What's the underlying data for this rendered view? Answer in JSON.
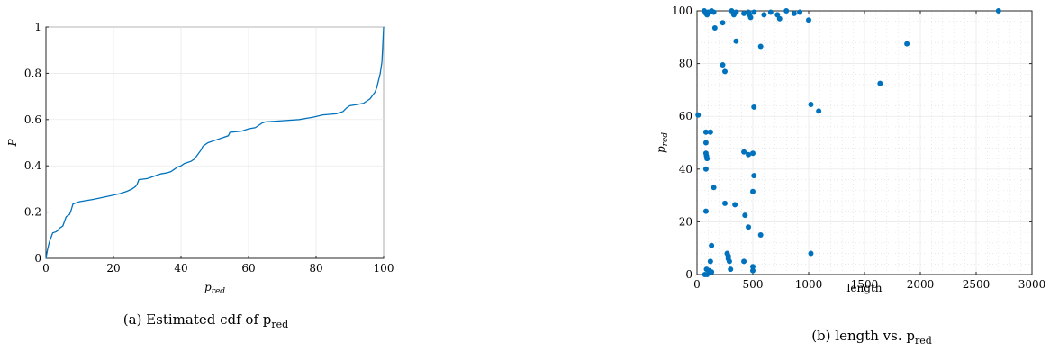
{
  "chart_data": [
    {
      "type": "line",
      "caption": "(a) Estimated cdf of p",
      "caption_sub": "red",
      "xlabel": "p",
      "xlabel_sub": "red",
      "ylabel": "P",
      "xlim": [
        0,
        100
      ],
      "ylim": [
        0,
        1
      ],
      "xticks": [
        "0",
        "20",
        "40",
        "60",
        "80",
        "100"
      ],
      "yticks": [
        "0",
        "0.2",
        "0.4",
        "0.6",
        "0.8",
        "1"
      ],
      "grid": true,
      "color": "#0072BD",
      "series": [
        {
          "x": [
            0,
            0.5,
            1,
            2,
            3,
            3.5,
            4,
            5,
            5.5,
            6,
            7,
            7.5,
            8,
            10,
            14,
            18,
            22,
            24,
            25.5,
            26.5,
            27,
            27.5,
            30,
            32,
            34,
            36,
            37,
            38,
            39,
            40,
            41,
            42,
            43,
            44,
            45,
            46,
            46.5,
            48,
            50,
            52,
            54,
            54.5,
            58,
            60,
            62,
            63,
            64,
            65,
            70,
            75,
            77,
            79,
            82,
            86,
            88,
            89,
            90,
            92,
            94,
            95,
            96,
            97,
            97.5,
            98,
            99,
            99.5,
            100
          ],
          "y": [
            0,
            0.04,
            0.07,
            0.11,
            0.115,
            0.12,
            0.13,
            0.14,
            0.16,
            0.18,
            0.19,
            0.21,
            0.235,
            0.245,
            0.255,
            0.267,
            0.28,
            0.29,
            0.3,
            0.31,
            0.32,
            0.34,
            0.345,
            0.355,
            0.365,
            0.37,
            0.375,
            0.385,
            0.395,
            0.4,
            0.41,
            0.415,
            0.42,
            0.43,
            0.45,
            0.47,
            0.485,
            0.5,
            0.51,
            0.52,
            0.53,
            0.545,
            0.55,
            0.56,
            0.565,
            0.575,
            0.585,
            0.59,
            0.595,
            0.6,
            0.605,
            0.61,
            0.62,
            0.625,
            0.635,
            0.65,
            0.66,
            0.665,
            0.67,
            0.68,
            0.69,
            0.71,
            0.72,
            0.74,
            0.8,
            0.85,
            1.0
          ]
        }
      ]
    },
    {
      "type": "scatter",
      "caption": "(b) length vs. p",
      "caption_sub": "red",
      "xlabel": "length",
      "ylabel": "p",
      "ylabel_sub": "red",
      "xlim": [
        0,
        3000
      ],
      "ylim": [
        0,
        100
      ],
      "xticks": [
        "0",
        "500",
        "1000",
        "1500",
        "2000",
        "2500",
        "3000"
      ],
      "yticks": [
        "0",
        "20",
        "40",
        "60",
        "80",
        "100"
      ],
      "grid": true,
      "minor_grid": true,
      "color": "#0072BD",
      "series": [
        {
          "x": [
            65,
            80,
            90,
            100,
            130,
            150,
            310,
            330,
            470,
            480,
            510,
            600,
            660,
            720,
            800,
            920,
            1000,
            2700,
            740,
            870,
            350,
            420,
            230,
            160,
            460,
            350,
            570,
            1880,
            230,
            250,
            1640,
            10,
            1020,
            1090,
            510,
            80,
            120,
            80,
            80,
            85,
            90,
            420,
            500,
            80,
            460,
            510,
            150,
            340,
            250,
            80,
            430,
            500,
            460,
            570,
            130,
            120,
            270,
            280,
            290,
            420,
            1020,
            300,
            280,
            500,
            500,
            70,
            85,
            110,
            130,
            90
          ],
          "y": [
            100,
            99,
            98.5,
            99.5,
            100,
            99.5,
            100,
            98.5,
            98.5,
            97.5,
            99.5,
            98.5,
            99.5,
            98.5,
            100,
            99.5,
            96.5,
            100,
            97,
            99,
            88.5,
            99,
            95.5,
            93.5,
            99.5,
            99.5,
            86.5,
            87.5,
            79.5,
            77,
            72.5,
            60.5,
            64.5,
            62,
            63.5,
            54,
            54,
            50,
            46,
            45,
            44,
            46.5,
            46,
            40,
            45.5,
            37.5,
            33,
            26.5,
            27,
            24,
            22.5,
            31.5,
            18,
            15,
            11,
            5,
            8,
            7,
            5,
            5,
            8,
            2,
            6,
            3,
            1.5,
            0,
            2,
            1.5,
            1,
            0
          ]
        }
      ]
    }
  ]
}
